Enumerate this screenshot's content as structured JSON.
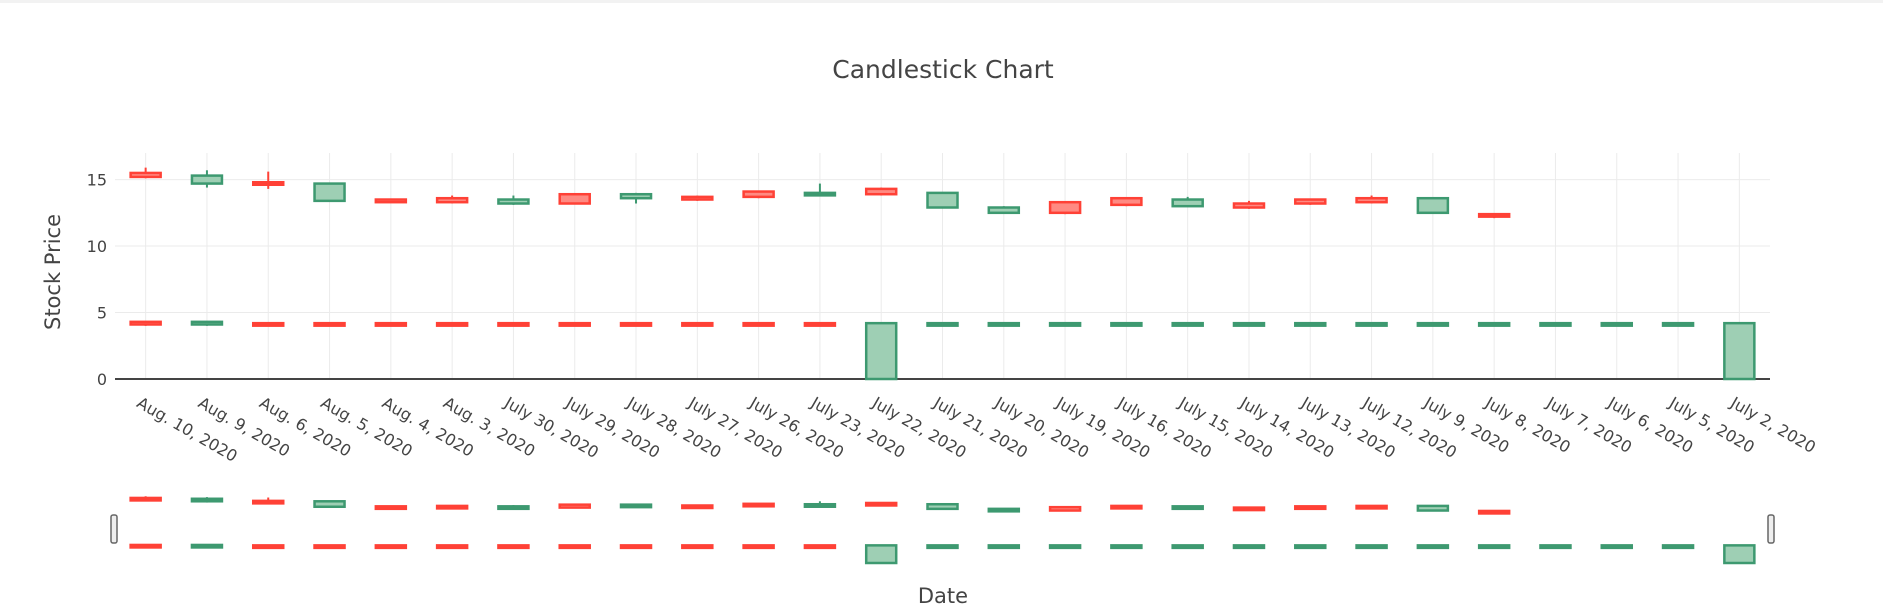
{
  "chart_data": {
    "type": "candlestick",
    "title": "Candlestick Chart",
    "xlabel": "Date",
    "ylabel": "Stock Price",
    "ylim": [
      0,
      17
    ],
    "yticks": [
      0,
      5,
      10,
      15
    ],
    "grid": true,
    "legend": "none",
    "rangeslider": true,
    "colors": {
      "increasing_line": "#3d9970",
      "increasing_fill": "#9ecfb4",
      "decreasing_line": "#ff4136",
      "decreasing_fill": "#ff8a82",
      "grid": "#ebebeb",
      "zero_line": "#444444"
    },
    "categories": [
      "Aug. 10, 2020",
      "Aug. 9, 2020",
      "Aug. 6, 2020",
      "Aug. 5, 2020",
      "Aug. 4, 2020",
      "Aug. 3, 2020",
      "July 30, 2020",
      "July 29, 2020",
      "July 28, 2020",
      "July 27, 2020",
      "July 26, 2020",
      "July 23, 2020",
      "July 22, 2020",
      "July 21, 2020",
      "July 20, 2020",
      "July 19, 2020",
      "July 16, 2020",
      "July 15, 2020",
      "July 14, 2020",
      "July 13, 2020",
      "July 12, 2020",
      "July 9, 2020",
      "July 8, 2020",
      "July 7, 2020",
      "July 6, 2020",
      "July 5, 2020",
      "July 2, 2020"
    ],
    "series": [
      {
        "values": [
          {
            "open": 15.5,
            "high": 15.9,
            "low": 15.1,
            "close": 15.2
          },
          {
            "open": 14.7,
            "high": 15.7,
            "low": 14.4,
            "close": 15.3
          },
          {
            "open": 14.8,
            "high": 15.6,
            "low": 14.3,
            "close": 14.7
          },
          {
            "open": 13.4,
            "high": 14.7,
            "low": 13.4,
            "close": 14.7
          },
          {
            "open": 13.5,
            "high": 13.5,
            "low": 13.3,
            "close": 13.3
          },
          {
            "open": 13.6,
            "high": 13.8,
            "low": 13.2,
            "close": 13.3
          },
          {
            "open": 13.2,
            "high": 13.8,
            "low": 13.1,
            "close": 13.5
          },
          {
            "open": 13.9,
            "high": 13.9,
            "low": 13.2,
            "close": 13.2
          },
          {
            "open": 13.6,
            "high": 14.0,
            "low": 13.2,
            "close": 13.9
          },
          {
            "open": 13.7,
            "high": 13.8,
            "low": 13.4,
            "close": 13.5
          },
          {
            "open": 14.1,
            "high": 14.1,
            "low": 13.6,
            "close": 13.7
          },
          {
            "open": 13.9,
            "high": 14.7,
            "low": 13.8,
            "close": 14.0
          },
          {
            "open": 14.3,
            "high": 14.4,
            "low": 13.8,
            "close": 13.9
          },
          {
            "open": 12.9,
            "high": 14.0,
            "low": 12.9,
            "close": 14.0
          },
          {
            "open": 12.5,
            "high": 13.0,
            "low": 12.5,
            "close": 12.9
          },
          {
            "open": 13.3,
            "high": 13.3,
            "low": 12.4,
            "close": 12.5
          },
          {
            "open": 13.6,
            "high": 13.6,
            "low": 13.0,
            "close": 13.1
          },
          {
            "open": 13.0,
            "high": 13.7,
            "low": 13.0,
            "close": 13.5
          },
          {
            "open": 13.2,
            "high": 13.4,
            "low": 12.8,
            "close": 12.9
          },
          {
            "open": 13.5,
            "high": 13.5,
            "low": 13.1,
            "close": 13.2
          },
          {
            "open": 13.6,
            "high": 13.8,
            "low": 13.2,
            "close": 13.3
          },
          {
            "open": 12.5,
            "high": 13.6,
            "low": 12.5,
            "close": 13.6
          },
          {
            "open": 12.4,
            "high": 12.4,
            "low": 12.1,
            "close": 12.3
          },
          null,
          null,
          null,
          null
        ]
      },
      {
        "values": [
          {
            "open": 4.3,
            "high": 4.3,
            "low": 4.0,
            "close": 4.1
          },
          {
            "open": 4.1,
            "high": 4.3,
            "low": 4.0,
            "close": 4.3
          },
          {
            "open": 4.2,
            "high": 4.2,
            "low": 4.1,
            "close": 4.1
          },
          {
            "open": 4.2,
            "high": 4.2,
            "low": 4.1,
            "close": 4.1
          },
          {
            "open": 4.2,
            "high": 4.2,
            "low": 4.1,
            "close": 4.1
          },
          {
            "open": 4.2,
            "high": 4.2,
            "low": 4.1,
            "close": 4.1
          },
          {
            "open": 4.2,
            "high": 4.2,
            "low": 4.1,
            "close": 4.1
          },
          {
            "open": 4.2,
            "high": 4.2,
            "low": 4.1,
            "close": 4.1
          },
          {
            "open": 4.2,
            "high": 4.2,
            "low": 4.1,
            "close": 4.1
          },
          {
            "open": 4.2,
            "high": 4.2,
            "low": 4.1,
            "close": 4.1
          },
          {
            "open": 4.2,
            "high": 4.2,
            "low": 4.1,
            "close": 4.1
          },
          {
            "open": 4.2,
            "high": 4.2,
            "low": 4.1,
            "close": 4.1
          },
          {
            "open": 0.0,
            "high": 4.2,
            "low": 0.0,
            "close": 4.2
          },
          {
            "open": 4.1,
            "high": 4.2,
            "low": 4.1,
            "close": 4.2
          },
          {
            "open": 4.1,
            "high": 4.2,
            "low": 4.1,
            "close": 4.2
          },
          {
            "open": 4.1,
            "high": 4.2,
            "low": 4.1,
            "close": 4.2
          },
          {
            "open": 4.1,
            "high": 4.2,
            "low": 4.1,
            "close": 4.2
          },
          {
            "open": 4.1,
            "high": 4.2,
            "low": 4.1,
            "close": 4.2
          },
          {
            "open": 4.1,
            "high": 4.2,
            "low": 4.1,
            "close": 4.2
          },
          {
            "open": 4.1,
            "high": 4.2,
            "low": 4.1,
            "close": 4.2
          },
          {
            "open": 4.1,
            "high": 4.2,
            "low": 4.1,
            "close": 4.2
          },
          {
            "open": 4.1,
            "high": 4.2,
            "low": 4.1,
            "close": 4.2
          },
          {
            "open": 4.1,
            "high": 4.2,
            "low": 4.1,
            "close": 4.2
          },
          {
            "open": 4.1,
            "high": 4.2,
            "low": 4.1,
            "close": 4.2
          },
          {
            "open": 4.1,
            "high": 4.2,
            "low": 4.1,
            "close": 4.2
          },
          {
            "open": 4.1,
            "high": 4.2,
            "low": 4.1,
            "close": 4.2
          },
          {
            "open": 0.0,
            "high": 4.2,
            "low": 0.0,
            "close": 4.2
          }
        ]
      }
    ]
  }
}
